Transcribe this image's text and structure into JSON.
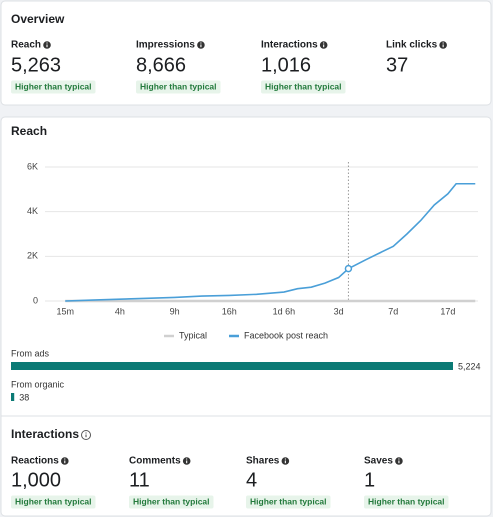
{
  "overview": {
    "title": "Overview",
    "metrics": [
      {
        "label": "Reach",
        "value": "5,263",
        "badge": "Higher than typical"
      },
      {
        "label": "Impressions",
        "value": "8,666",
        "badge": "Higher than typical"
      },
      {
        "label": "Interactions",
        "value": "1,016",
        "badge": "Higher than typical"
      },
      {
        "label": "Link clicks",
        "value": "37"
      }
    ]
  },
  "chart_data": {
    "type": "line",
    "title": "Reach",
    "x": [
      0,
      0.5,
      1,
      1.5,
      2,
      2.5,
      3,
      3.5,
      4,
      4.25,
      4.5,
      4.75,
      5,
      5.18,
      5.5,
      6,
      6.25,
      6.5,
      6.75,
      7,
      7.15,
      7.5
    ],
    "series": [
      {
        "name": "Typical",
        "color": "#d0d0d0",
        "values": [
          0,
          0,
          0,
          0,
          0,
          0,
          0,
          0,
          0,
          0,
          0,
          0,
          0,
          0,
          0,
          0,
          0,
          0,
          0,
          0,
          0,
          0
        ]
      },
      {
        "name": "Facebook post reach",
        "color": "#4a9fd8",
        "values": [
          0,
          40,
          80,
          120,
          160,
          220,
          250,
          300,
          400,
          550,
          620,
          800,
          1050,
          1450,
          1850,
          2450,
          3000,
          3600,
          4300,
          4800,
          5250,
          5250
        ]
      }
    ],
    "xlim": [
      -0.37,
      7.55
    ],
    "xticks": [
      {
        "value": 0,
        "label": "15m"
      },
      {
        "value": 1,
        "label": "4h"
      },
      {
        "value": 2,
        "label": "9h"
      },
      {
        "value": 3,
        "label": "16h"
      },
      {
        "value": 4,
        "label": "1d 6h"
      },
      {
        "value": 5,
        "label": "3d"
      },
      {
        "value": 6,
        "label": "7d"
      },
      {
        "value": 7,
        "label": "17d"
      }
    ],
    "ylim": [
      0,
      6000
    ],
    "yticks": [
      0,
      {
        "value": 2000,
        "label": "2K"
      },
      {
        "value": 4000,
        "label": "4K"
      },
      {
        "value": 6000,
        "label": "6K"
      }
    ],
    "grid": true,
    "highlight": {
      "x": 5.18,
      "y": 1450
    }
  },
  "sources": [
    {
      "label": "From ads",
      "value": 5224,
      "value_label": "5,224",
      "color": "#0b7a75"
    },
    {
      "label": "From organic",
      "value": 38,
      "color": "#0b7a75"
    }
  ],
  "interactions": {
    "title": "Interactions",
    "metrics": [
      {
        "label": "Reactions",
        "value": "1,000",
        "badge": "Higher than typical"
      },
      {
        "label": "Comments",
        "value": "11",
        "badge": "Higher than typical"
      },
      {
        "label": "Shares",
        "value": "4",
        "badge": "Higher than typical"
      },
      {
        "label": "Saves",
        "value": "1",
        "badge": "Higher than typical"
      }
    ]
  }
}
